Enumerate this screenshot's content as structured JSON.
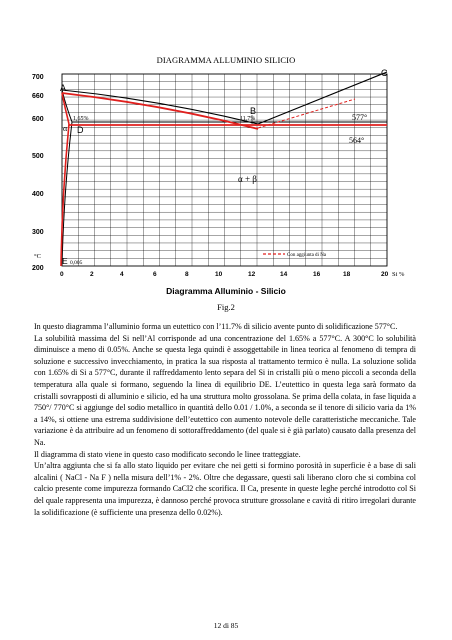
{
  "document": {
    "title": "DIAGRAMMA ALLUMINIO SILICIO",
    "figure_subtitle": "Diagramma Alluminio - Silicio",
    "figure_caption": "Fig.2",
    "page_number": "12 di 85"
  },
  "diagram": {
    "y_ticks": [
      "700",
      "660",
      "600",
      "500",
      "400",
      "300",
      "200"
    ],
    "y_unit": "°C",
    "x_ticks": [
      "0",
      "2",
      "4",
      "6",
      "8",
      "10",
      "12",
      "14",
      "16",
      "18",
      "20"
    ],
    "x_unit": "Si %",
    "point_labels": {
      "A": "A",
      "B": "B",
      "C": "C",
      "D": "D",
      "E": "E"
    },
    "annotations": {
      "solubility": "1,65%",
      "eutectic": "11,7%",
      "t1": "577°",
      "t2": "564°",
      "phase_alpha": "α",
      "phase_ab": "α + β",
      "e_value": "0,005",
      "na_legend": "Con aggiunta di Na"
    }
  },
  "paragraphs": [
    "In questo diagramma l’alluminio forma un eutettico con l’11.7% di silicio avente punto di solidificazione 577°C.",
    "La solubilità massima del Si nell’Al corrisponde ad una concentrazione del 1.65% a 577°C. A 300°C lo solubilità diminuisce a meno di 0.05%. Anche se questa lega quindi è assoggettabile in linea teorica al fenomeno di tempra di soluzione e successivo invecchiamento, in pratica la sua risposta al trattamento termico è nulla. La soluzione solida con 1.65% di Si a 577°C, durante il raffreddamento lento separa del Si in cristalli più o meno piccoli a seconda della temperatura alla quale si formano, seguendo la linea di equilibrio DE. L’eutettico in questa lega sarà formato da cristalli sovrapposti di alluminio e silicio, ed ha una struttura molto grossolana. Se prima della colata, in fase liquida a 750°/ 770°C si aggiunge del sodio metallico in quantità dello 0.01 / 1.0%, a seconda se il tenore di silicio varia da 1% a 14%, si ottiene una estrema suddivisione dell’eutettico con aumento notevole delle caratteristiche meccaniche. Tale variazione è da attribuire ad un fenomeno di sottoraffreddamento (del quale si è già parlato) causato dalla presenza del Na.",
    "Il diagramma di stato viene in questo caso modificato secondo le linee tratteggiate.",
    "Un’altra aggiunta che si fa allo stato liquido per evitare che nei getti si formino porosità in superficie è a base di sali alcalini ( NaCl - Na F ) nella misura dell’1% - 2%. Oltre che degassare, questi sali liberano cloro che si combina col calcio presente come impurezza formando CaCl2 che scorifica. Il Ca, presente in queste leghe perché introdotto col Si del quale rappresenta una impurezza, è dannoso perché provoca strutture grossolane e cavità di ritiro irregolari durante la solidificazione (è sufficiente una presenza dello 0.02%)."
  ]
}
